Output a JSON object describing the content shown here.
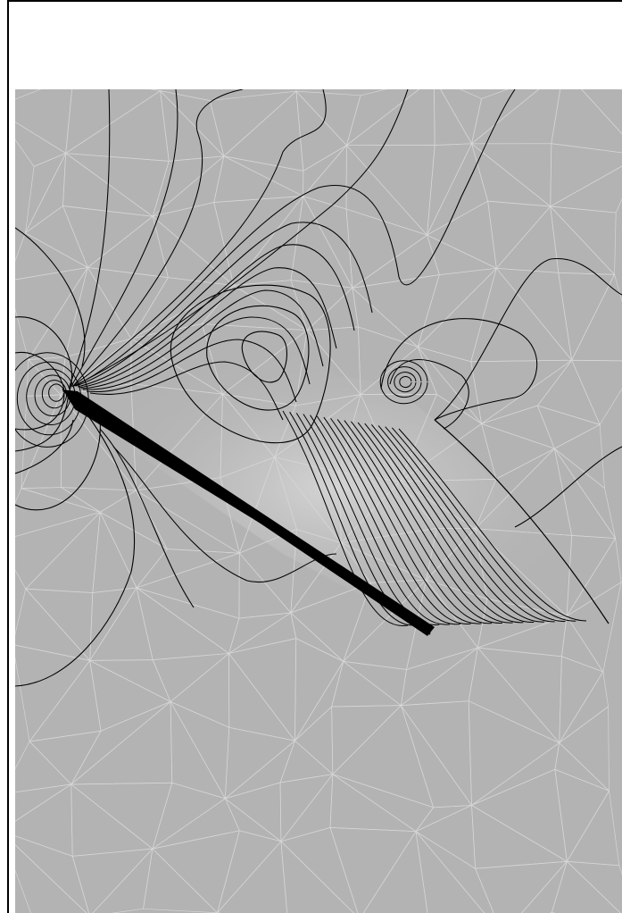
{
  "figure": {
    "type": "contour-plot-on-triangular-mesh",
    "colors": {
      "background": "#b3b3b3",
      "mesh_lines": "#d6d6d6",
      "contour_lines": "#000000",
      "highlight": "#d2d2d2",
      "frame": "#000000"
    },
    "contour_level_count": 24,
    "has_text_labels": false
  }
}
